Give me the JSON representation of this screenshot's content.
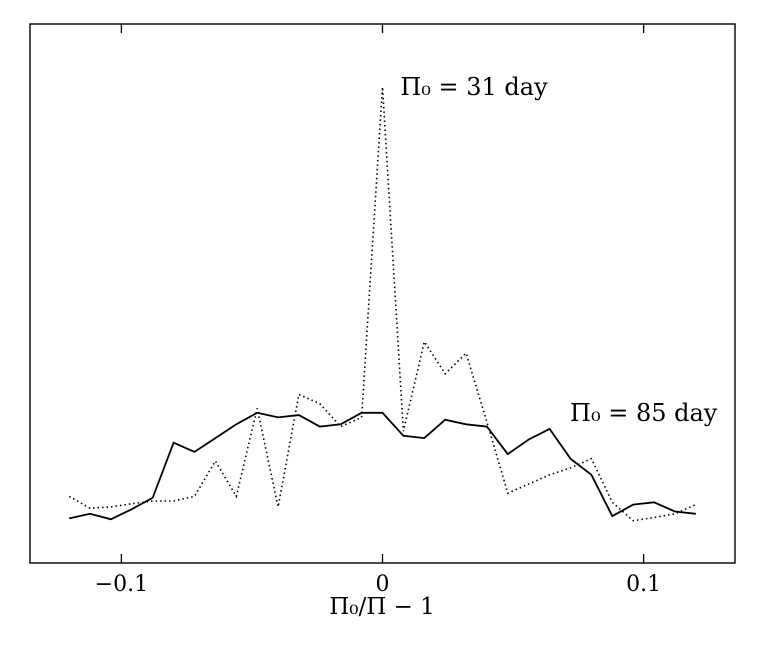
{
  "chart_data": {
    "type": "line",
    "title": "",
    "xlabel": "Π₀/Π − 1",
    "ylabel": "",
    "xlim": [
      -0.135,
      0.135
    ],
    "ylim": [
      0,
      1.0
    ],
    "grid": false,
    "xticks": [
      -0.1,
      0,
      0.1
    ],
    "xtick_labels": [
      "−0.1",
      "0",
      "0.1"
    ],
    "series": [
      {
        "name": "Π₀ = 31 day",
        "style": "dotted",
        "color": "#000000",
        "x": [
          -0.12,
          -0.112,
          -0.104,
          -0.096,
          -0.088,
          -0.08,
          -0.072,
          -0.064,
          -0.056,
          -0.048,
          -0.04,
          -0.032,
          -0.024,
          -0.016,
          -0.008,
          0.0,
          0.008,
          0.016,
          0.024,
          0.032,
          0.04,
          0.048,
          0.056,
          0.064,
          0.072,
          0.08,
          0.088,
          0.096,
          0.104,
          0.112,
          0.12
        ],
        "y": [
          0.058,
          0.032,
          0.035,
          0.042,
          0.048,
          0.048,
          0.058,
          0.135,
          0.058,
          0.25,
          0.035,
          0.28,
          0.26,
          0.21,
          0.23,
          0.95,
          0.2,
          0.395,
          0.325,
          0.37,
          0.22,
          0.065,
          0.085,
          0.105,
          0.12,
          0.14,
          0.045,
          0.005,
          0.012,
          0.02,
          0.04
        ]
      },
      {
        "name": "Π₀ = 85 day",
        "style": "solid",
        "color": "#000000",
        "x": [
          -0.12,
          -0.112,
          -0.104,
          -0.096,
          -0.088,
          -0.08,
          -0.072,
          -0.064,
          -0.056,
          -0.048,
          -0.04,
          -0.032,
          -0.024,
          -0.016,
          -0.008,
          0.0,
          0.008,
          0.016,
          0.024,
          0.032,
          0.04,
          0.048,
          0.056,
          0.064,
          0.072,
          0.08,
          0.088,
          0.096,
          0.104,
          0.112,
          0.12
        ],
        "y": [
          0.01,
          0.02,
          0.008,
          0.03,
          0.055,
          0.175,
          0.155,
          0.185,
          0.215,
          0.24,
          0.23,
          0.235,
          0.21,
          0.215,
          0.24,
          0.24,
          0.19,
          0.185,
          0.225,
          0.215,
          0.21,
          0.15,
          0.182,
          0.205,
          0.14,
          0.105,
          0.015,
          0.04,
          0.045,
          0.025,
          0.02
        ]
      }
    ],
    "annotations": [
      {
        "text": "Π₀ = 31 day",
        "x": 0.003,
        "y": 0.95
      },
      {
        "text": "Π₀ = 85 day",
        "x": 0.068,
        "y": 0.24
      }
    ]
  }
}
